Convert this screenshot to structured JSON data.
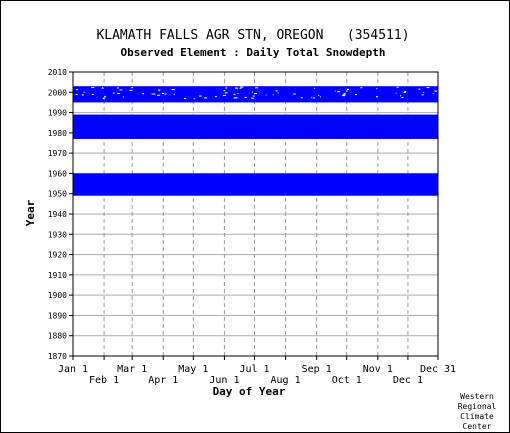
{
  "chart_data": {
    "type": "heatmap",
    "title": "KLAMATH FALLS AGR STN, OREGON   (354511)",
    "subtitle": "Observed Element : Daily Total Snowdepth",
    "xlabel": "Day of Year",
    "ylabel": "Year",
    "ylim": [
      1870,
      2010
    ],
    "xlim": [
      1,
      365
    ],
    "grid": true,
    "y_ticks": [
      2010,
      2000,
      1990,
      1980,
      1970,
      1960,
      1950,
      1940,
      1930,
      1920,
      1910,
      1900,
      1890,
      1880,
      1870
    ],
    "x_ticks_top_row": [
      {
        "label": "Jan 1",
        "day": 1
      },
      {
        "label": "Mar 1",
        "day": 60
      },
      {
        "label": "May 1",
        "day": 121
      },
      {
        "label": "Jul 1",
        "day": 182
      },
      {
        "label": "Sep 1",
        "day": 244
      },
      {
        "label": "Nov 1",
        "day": 305
      },
      {
        "label": "Dec 31",
        "day": 365
      }
    ],
    "x_ticks_bottom_row": [
      {
        "label": "Feb 1",
        "day": 32
      },
      {
        "label": "Apr 1",
        "day": 91
      },
      {
        "label": "Jun 1",
        "day": 152
      },
      {
        "label": "Aug 1",
        "day": 213
      },
      {
        "label": "Oct 1",
        "day": 274
      },
      {
        "label": "Dec 1",
        "day": 335
      }
    ],
    "series_color": "#0000ff",
    "observed_periods": [
      {
        "start_year": 1949,
        "end_year": 1959,
        "start_day": 1,
        "end_day": 365
      },
      {
        "start_year": 1977,
        "end_year": 1988,
        "start_day": 1,
        "end_day": 365
      },
      {
        "start_year": 1995,
        "end_year": 2002,
        "start_day": 1,
        "end_day": 365
      }
    ]
  },
  "credit": [
    "Western",
    "Regional",
    "Climate",
    "Center"
  ]
}
